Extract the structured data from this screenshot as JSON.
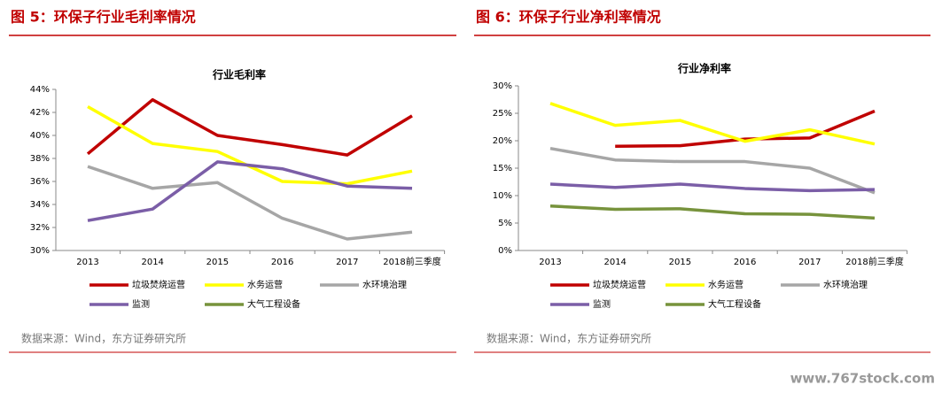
{
  "chart_data": [
    {
      "type": "line",
      "caption": "图 5：环保子行业毛利率情况",
      "title": "行业毛利率",
      "categories": [
        "2013",
        "2014",
        "2015",
        "2016",
        "2017",
        "2018前三季度"
      ],
      "ylim": [
        30,
        44
      ],
      "yticks": [
        {
          "value": 30,
          "label": "30%"
        },
        {
          "value": 32,
          "label": "32%"
        },
        {
          "value": 34,
          "label": "34%"
        },
        {
          "value": 36,
          "label": "36%"
        },
        {
          "value": 38,
          "label": "38%"
        },
        {
          "value": 40,
          "label": "40%"
        },
        {
          "value": 42,
          "label": "42%"
        },
        {
          "value": 44,
          "label": "44%"
        }
      ],
      "series": [
        {
          "name": "垃圾焚烧运营",
          "color": "#c00000",
          "values": [
            38.4,
            43.1,
            40.0,
            39.2,
            38.3,
            41.7
          ]
        },
        {
          "name": "水务运营",
          "color": "#ffff00",
          "values": [
            42.5,
            39.3,
            38.6,
            36.0,
            35.8,
            36.9
          ]
        },
        {
          "name": "水环境治理",
          "color": "#a6a6a6",
          "values": [
            37.3,
            35.4,
            35.9,
            32.8,
            31.0,
            31.6
          ]
        },
        {
          "name": "监测",
          "color": "#7b5ea7",
          "values": [
            32.6,
            33.6,
            37.7,
            37.1,
            35.6,
            35.4
          ]
        },
        {
          "name": "大气工程设备",
          "color": "#77933c",
          "values": [
            null,
            null,
            null,
            null,
            null,
            null
          ]
        }
      ],
      "source": "数据来源：Wind，东方证券研究所"
    },
    {
      "type": "line",
      "caption": "图 6：环保子行业净利率情况",
      "title": "行业净利率",
      "categories": [
        "2013",
        "2014",
        "2015",
        "2016",
        "2017",
        "2018前三季度"
      ],
      "ylim": [
        0,
        30
      ],
      "yticks": [
        {
          "value": 0,
          "label": "0%"
        },
        {
          "value": 5,
          "label": "5%"
        },
        {
          "value": 10,
          "label": "10%"
        },
        {
          "value": 15,
          "label": "15%"
        },
        {
          "value": 20,
          "label": "20%"
        },
        {
          "value": 25,
          "label": "25%"
        },
        {
          "value": 30,
          "label": "30%"
        }
      ],
      "series": [
        {
          "name": "垃圾焚烧运营",
          "color": "#c00000",
          "values": [
            null,
            19.0,
            19.1,
            20.3,
            20.5,
            25.4
          ]
        },
        {
          "name": "水务运营",
          "color": "#ffff00",
          "values": [
            26.8,
            22.8,
            23.7,
            19.9,
            22.0,
            19.4
          ]
        },
        {
          "name": "水环境治理",
          "color": "#a6a6a6",
          "values": [
            18.6,
            16.5,
            16.2,
            16.2,
            15.0,
            10.5
          ]
        },
        {
          "name": "监测",
          "color": "#7b5ea7",
          "values": [
            12.1,
            11.5,
            12.1,
            11.3,
            10.9,
            11.1
          ]
        },
        {
          "name": "大气工程设备",
          "color": "#77933c",
          "values": [
            8.1,
            7.5,
            7.6,
            6.7,
            6.6,
            5.9
          ]
        }
      ],
      "source": "数据来源：Wind，东方证券研究所"
    }
  ],
  "watermark": "www.767stock.com"
}
